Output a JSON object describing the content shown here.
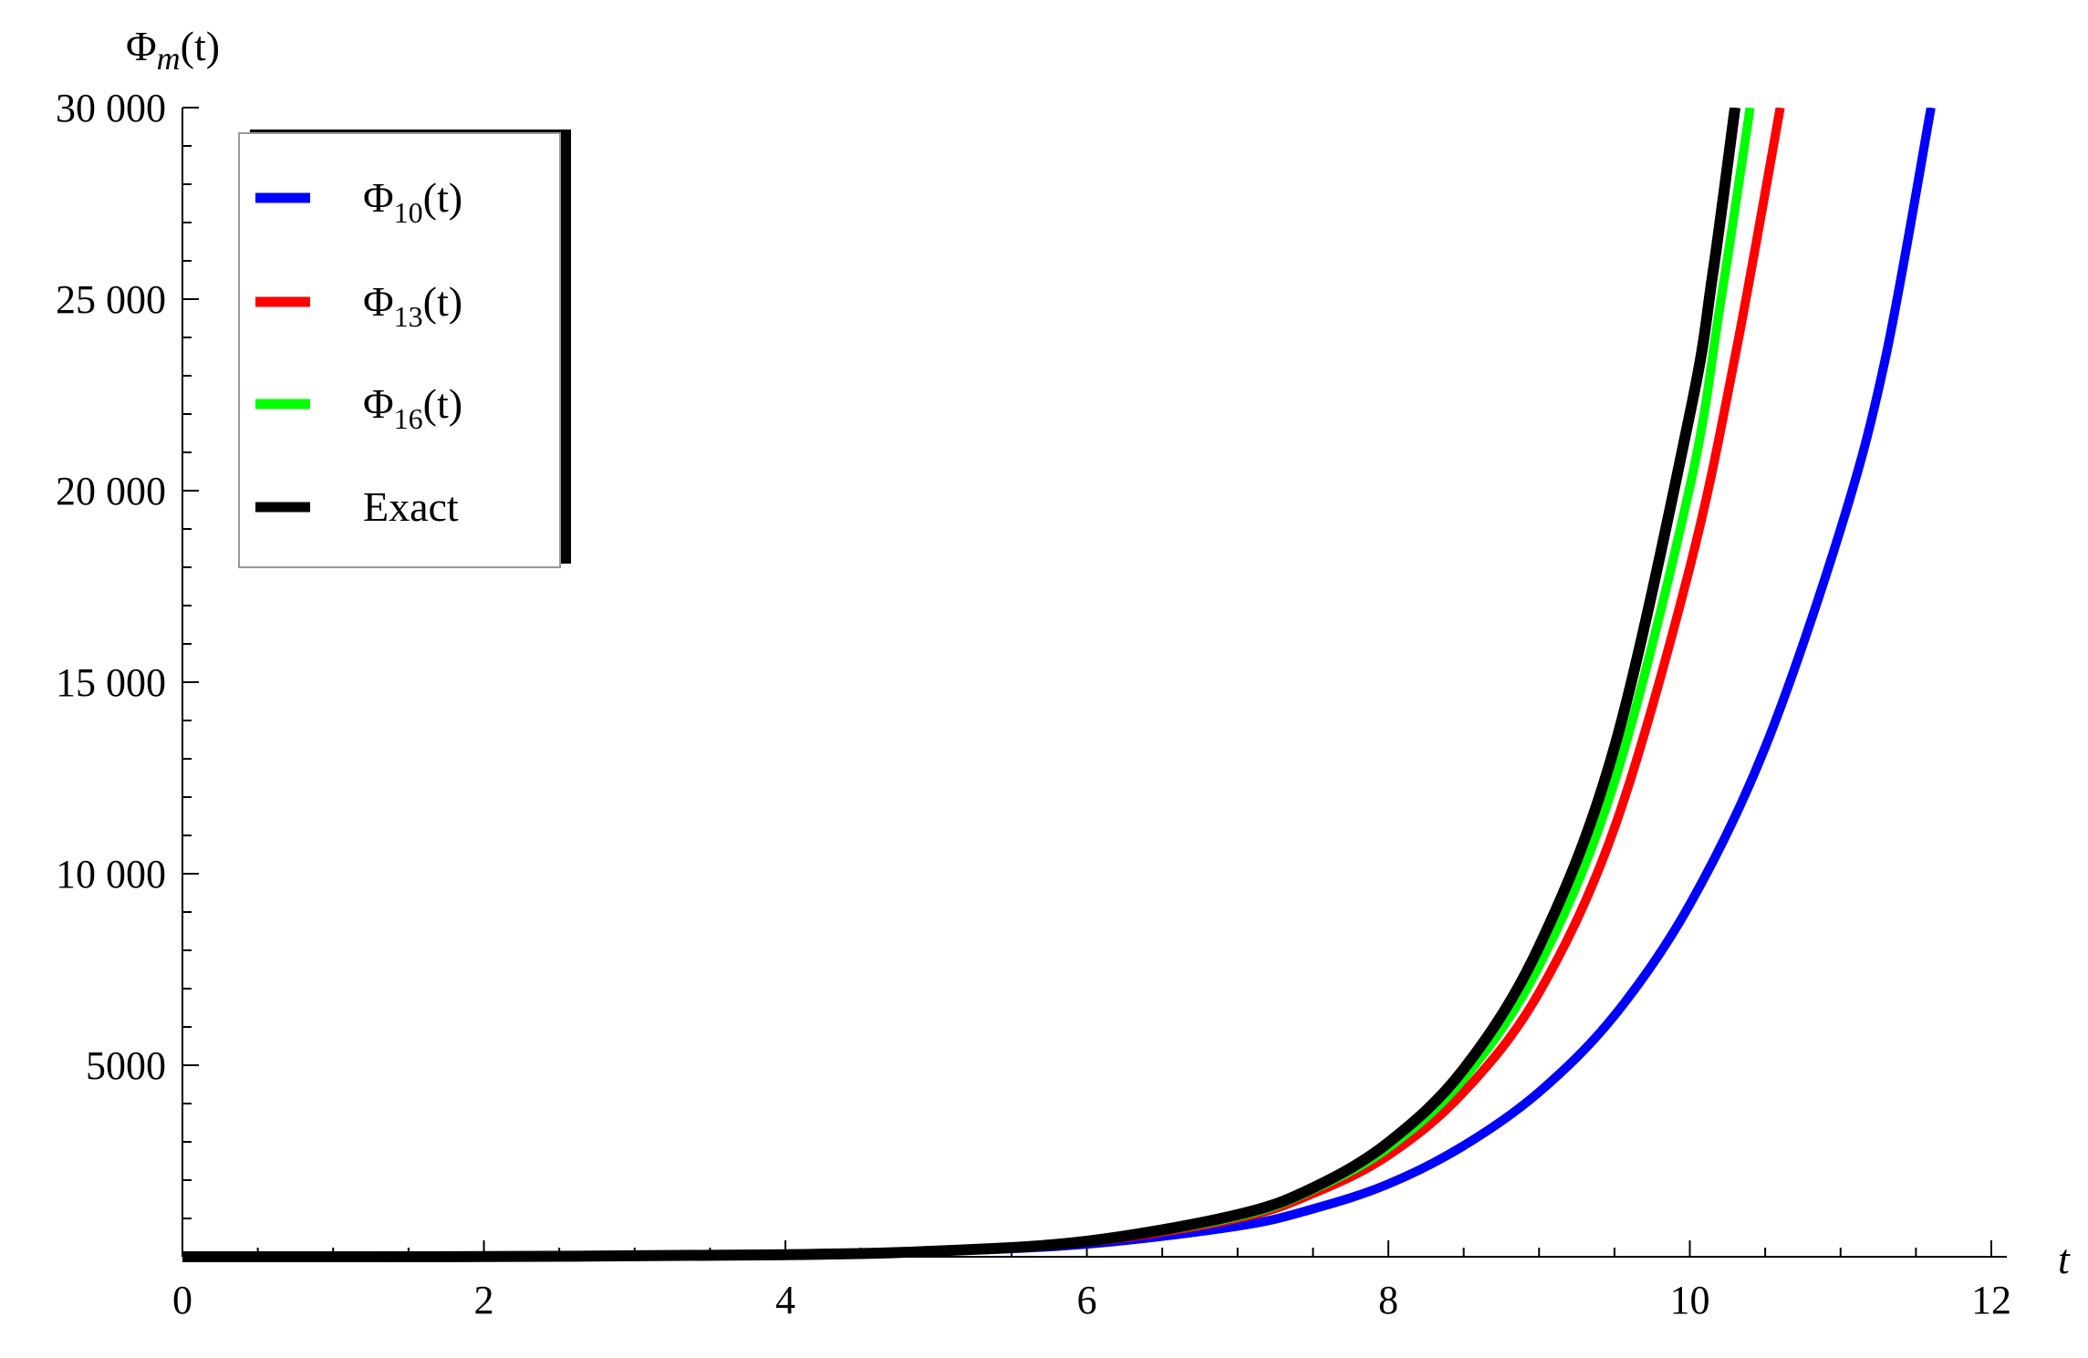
{
  "chart_data": {
    "type": "line",
    "title": "",
    "ylabel": {
      "base": "Φ",
      "sub": "m",
      "suffix": "(t)"
    },
    "xlabel": "t",
    "xlim": [
      0,
      12.3
    ],
    "ylim": [
      0,
      30000
    ],
    "x_ticks": [
      0,
      2,
      4,
      6,
      8,
      10,
      12
    ],
    "x_tick_labels": [
      "0",
      "2",
      "4",
      "6",
      "8",
      "10",
      "12"
    ],
    "y_ticks": [
      5000,
      10000,
      15000,
      20000,
      25000,
      30000
    ],
    "y_tick_labels": [
      "5000",
      "10 000",
      "15 000",
      "20 000",
      "25 000",
      "30 000"
    ],
    "grid": false,
    "legend_position": "top-left",
    "series": [
      {
        "name": {
          "base": "Φ",
          "sub": "10",
          "suffix": "(t)"
        },
        "color": "#0000ff",
        "x": [
          0,
          2,
          4,
          5,
          6,
          7,
          7.5,
          8,
          8.5,
          9,
          9.5,
          10,
          10.5,
          11,
          11.3,
          11.6
        ],
        "y": [
          0,
          5,
          50,
          140,
          330,
          800,
          1250,
          1900,
          2900,
          4300,
          6300,
          9200,
          13300,
          19000,
          23500,
          30000
        ]
      },
      {
        "name": {
          "base": "Φ",
          "sub": "13",
          "suffix": "(t)"
        },
        "color": "#ff0000",
        "x": [
          0,
          2,
          4,
          5,
          6,
          7,
          7.5,
          8,
          8.5,
          9,
          9.5,
          10,
          10.3,
          10.6
        ],
        "y": [
          0,
          5,
          50,
          140,
          380,
          1000,
          1650,
          2650,
          4300,
          6900,
          11200,
          18000,
          23500,
          30000
        ]
      },
      {
        "name": {
          "base": "Φ",
          "sub": "16",
          "suffix": "(t)"
        },
        "color": "#00ff00",
        "x": [
          0,
          2,
          4,
          5,
          6,
          7,
          7.5,
          8,
          8.5,
          9,
          9.5,
          10,
          10.2,
          10.4
        ],
        "y": [
          0,
          5,
          50,
          145,
          400,
          1050,
          1750,
          2850,
          4650,
          7600,
          12400,
          20100,
          24800,
          30000
        ]
      },
      {
        "name": "Exact",
        "color": "#000000",
        "x": [
          0,
          2,
          4,
          5,
          6,
          7,
          7.5,
          8,
          8.5,
          9,
          9.5,
          10,
          10.15,
          10.3
        ],
        "y": [
          0,
          5,
          55,
          150,
          405,
          1100,
          1800,
          2980,
          4900,
          8100,
          13300,
          22000,
          25600,
          30000
        ]
      }
    ]
  }
}
